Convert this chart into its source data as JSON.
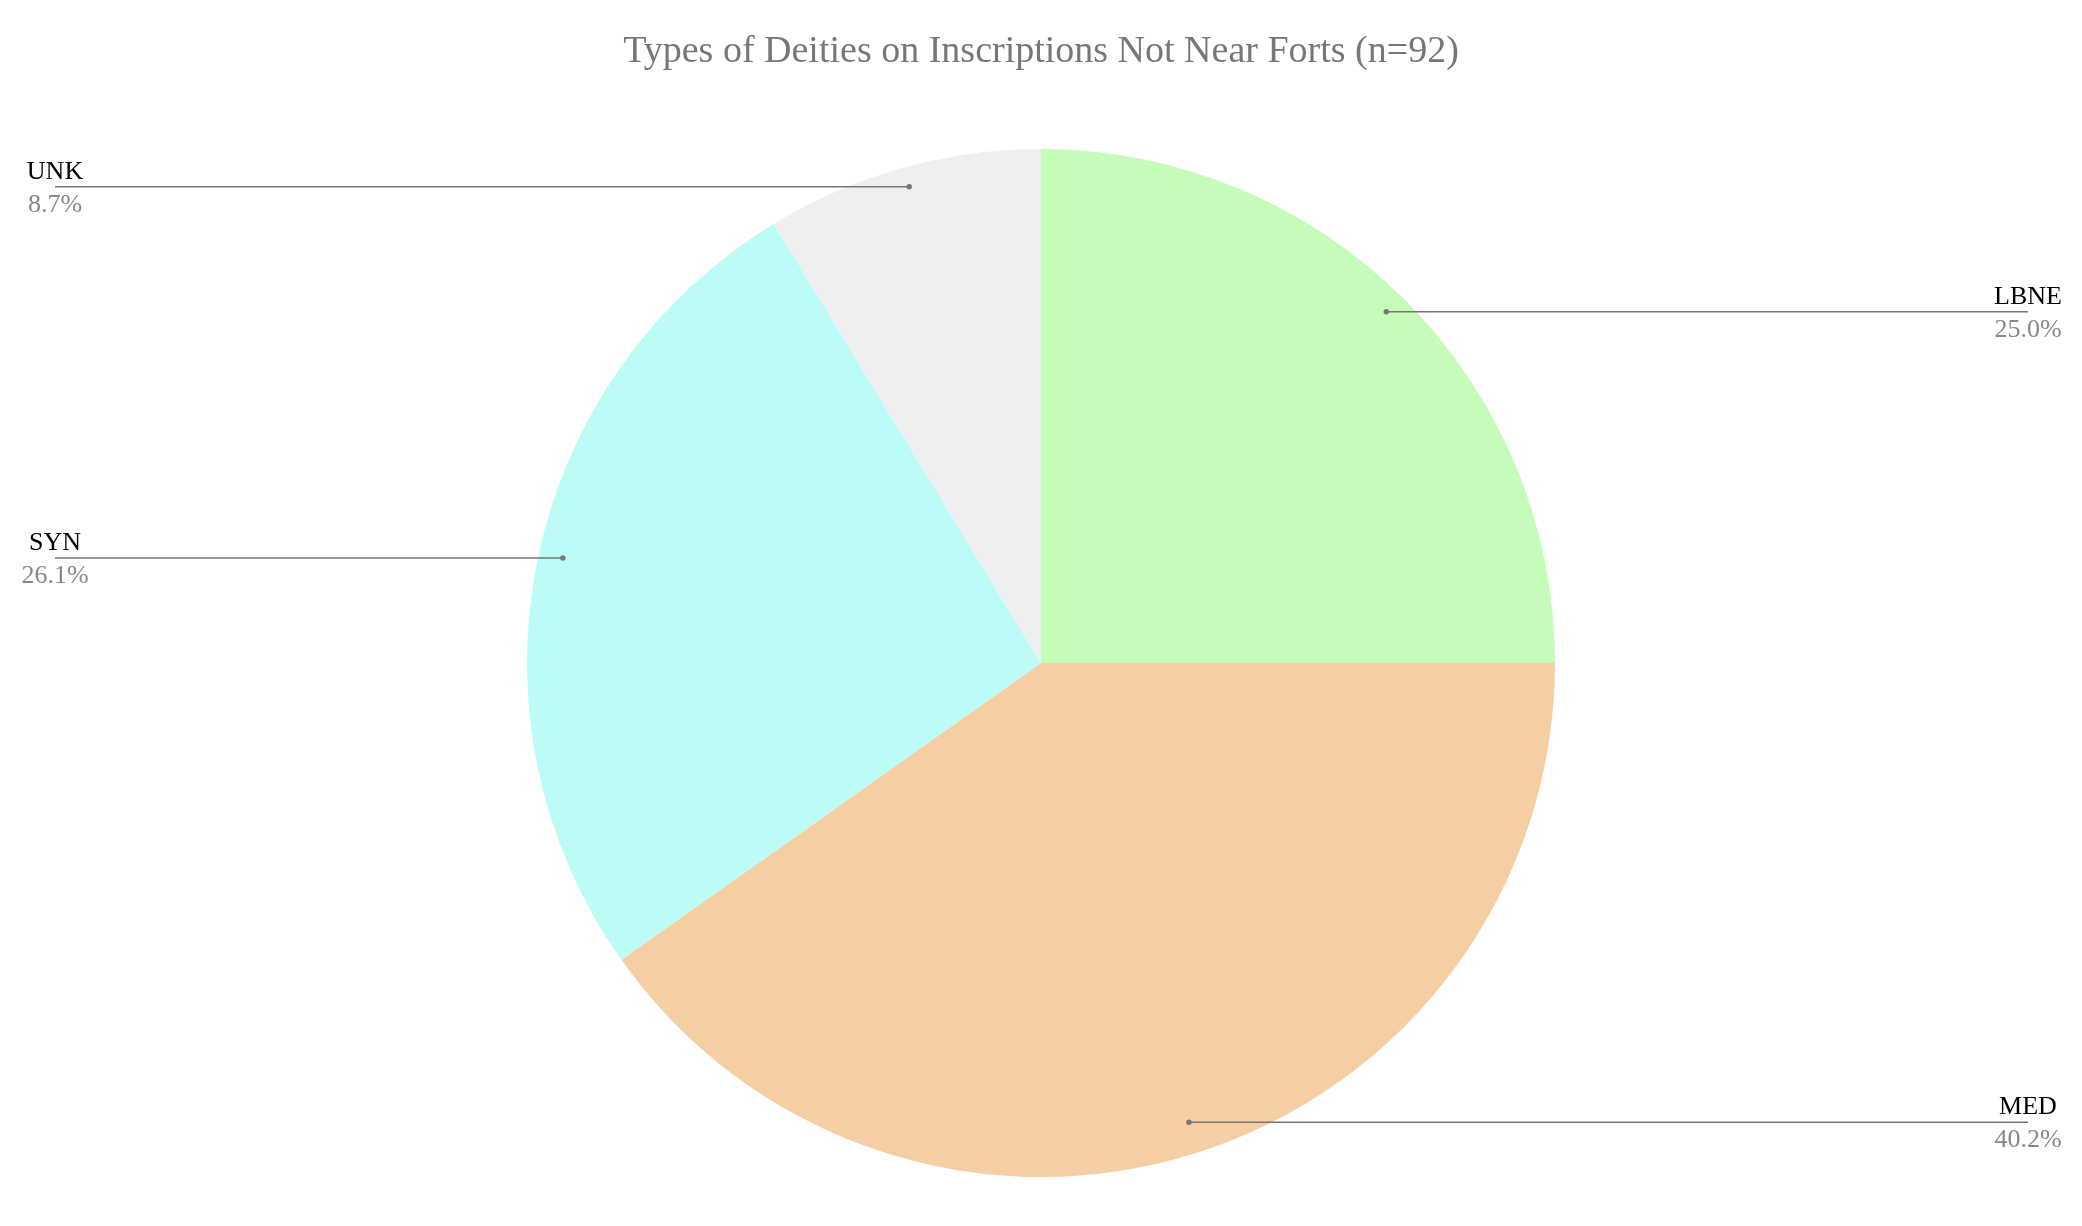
{
  "chart_data": {
    "type": "pie",
    "title": "Types of Deities on Inscriptions Not Near Forts (n=92)",
    "categories": [
      "LBNE",
      "MED",
      "SYN",
      "UNK"
    ],
    "values": [
      25.0,
      40.2,
      26.1,
      8.7
    ],
    "value_labels": [
      "25.0%",
      "40.2%",
      "26.1%",
      "8.7%"
    ],
    "colors": [
      "#c6fcb9",
      "#f5cea3",
      "#bdfbf6",
      "#efefef"
    ]
  }
}
